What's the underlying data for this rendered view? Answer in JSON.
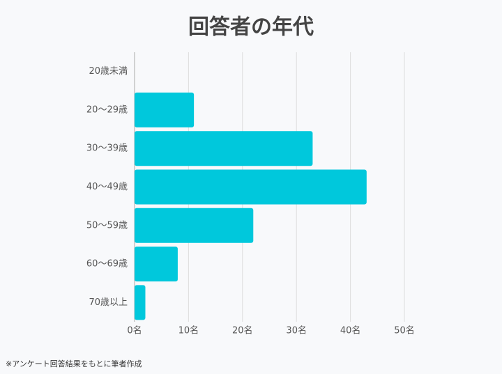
{
  "chart_data": {
    "type": "bar",
    "orientation": "horizontal",
    "title": "回答者の年代",
    "categories": [
      "20歳未満",
      "20〜29歳",
      "30〜39歳",
      "40〜49歳",
      "50〜59歳",
      "60〜69歳",
      "70歳以上"
    ],
    "values": [
      0,
      11,
      33,
      43,
      22,
      8,
      2
    ],
    "color": "#00c8dc",
    "xlim": [
      0,
      50
    ],
    "xticks": [
      {
        "value": 0,
        "label": "0名"
      },
      {
        "value": 10,
        "label": "10名"
      },
      {
        "value": 20,
        "label": "20名"
      },
      {
        "value": 30,
        "label": "30名"
      },
      {
        "value": 40,
        "label": "40名"
      },
      {
        "value": 50,
        "label": "50名"
      }
    ],
    "grid": true,
    "footnote": "※アンケート回答結果をもとに筆者作成"
  }
}
